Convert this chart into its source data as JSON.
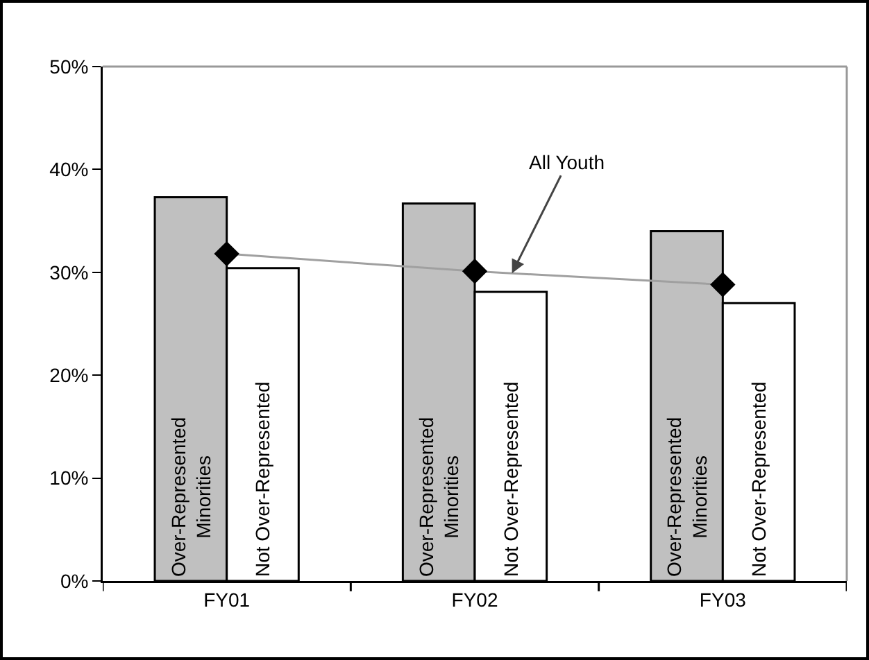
{
  "chart_data": {
    "type": "bar",
    "categories": [
      "FY01",
      "FY02",
      "FY03"
    ],
    "series": [
      {
        "name": "Over-Represented Minorities",
        "color": "#c0c0c0",
        "values": [
          37.3,
          36.7,
          34.0
        ]
      },
      {
        "name": "Not Over-Represented",
        "color": "#ffffff",
        "values": [
          30.4,
          28.1,
          27.0
        ]
      },
      {
        "name": "All Youth",
        "type": "line",
        "color": "#000000",
        "values": [
          31.8,
          30.1,
          28.8
        ]
      }
    ],
    "ylim": [
      0,
      50
    ],
    "yticks": [
      {
        "value": 0,
        "label": "0%"
      },
      {
        "value": 10,
        "label": "10%"
      },
      {
        "value": 20,
        "label": "20%"
      },
      {
        "value": 30,
        "label": "30%"
      },
      {
        "value": 40,
        "label": "40%"
      },
      {
        "value": 50,
        "label": "50%"
      }
    ],
    "grid": false,
    "legend": false,
    "marker": "diamond"
  }
}
